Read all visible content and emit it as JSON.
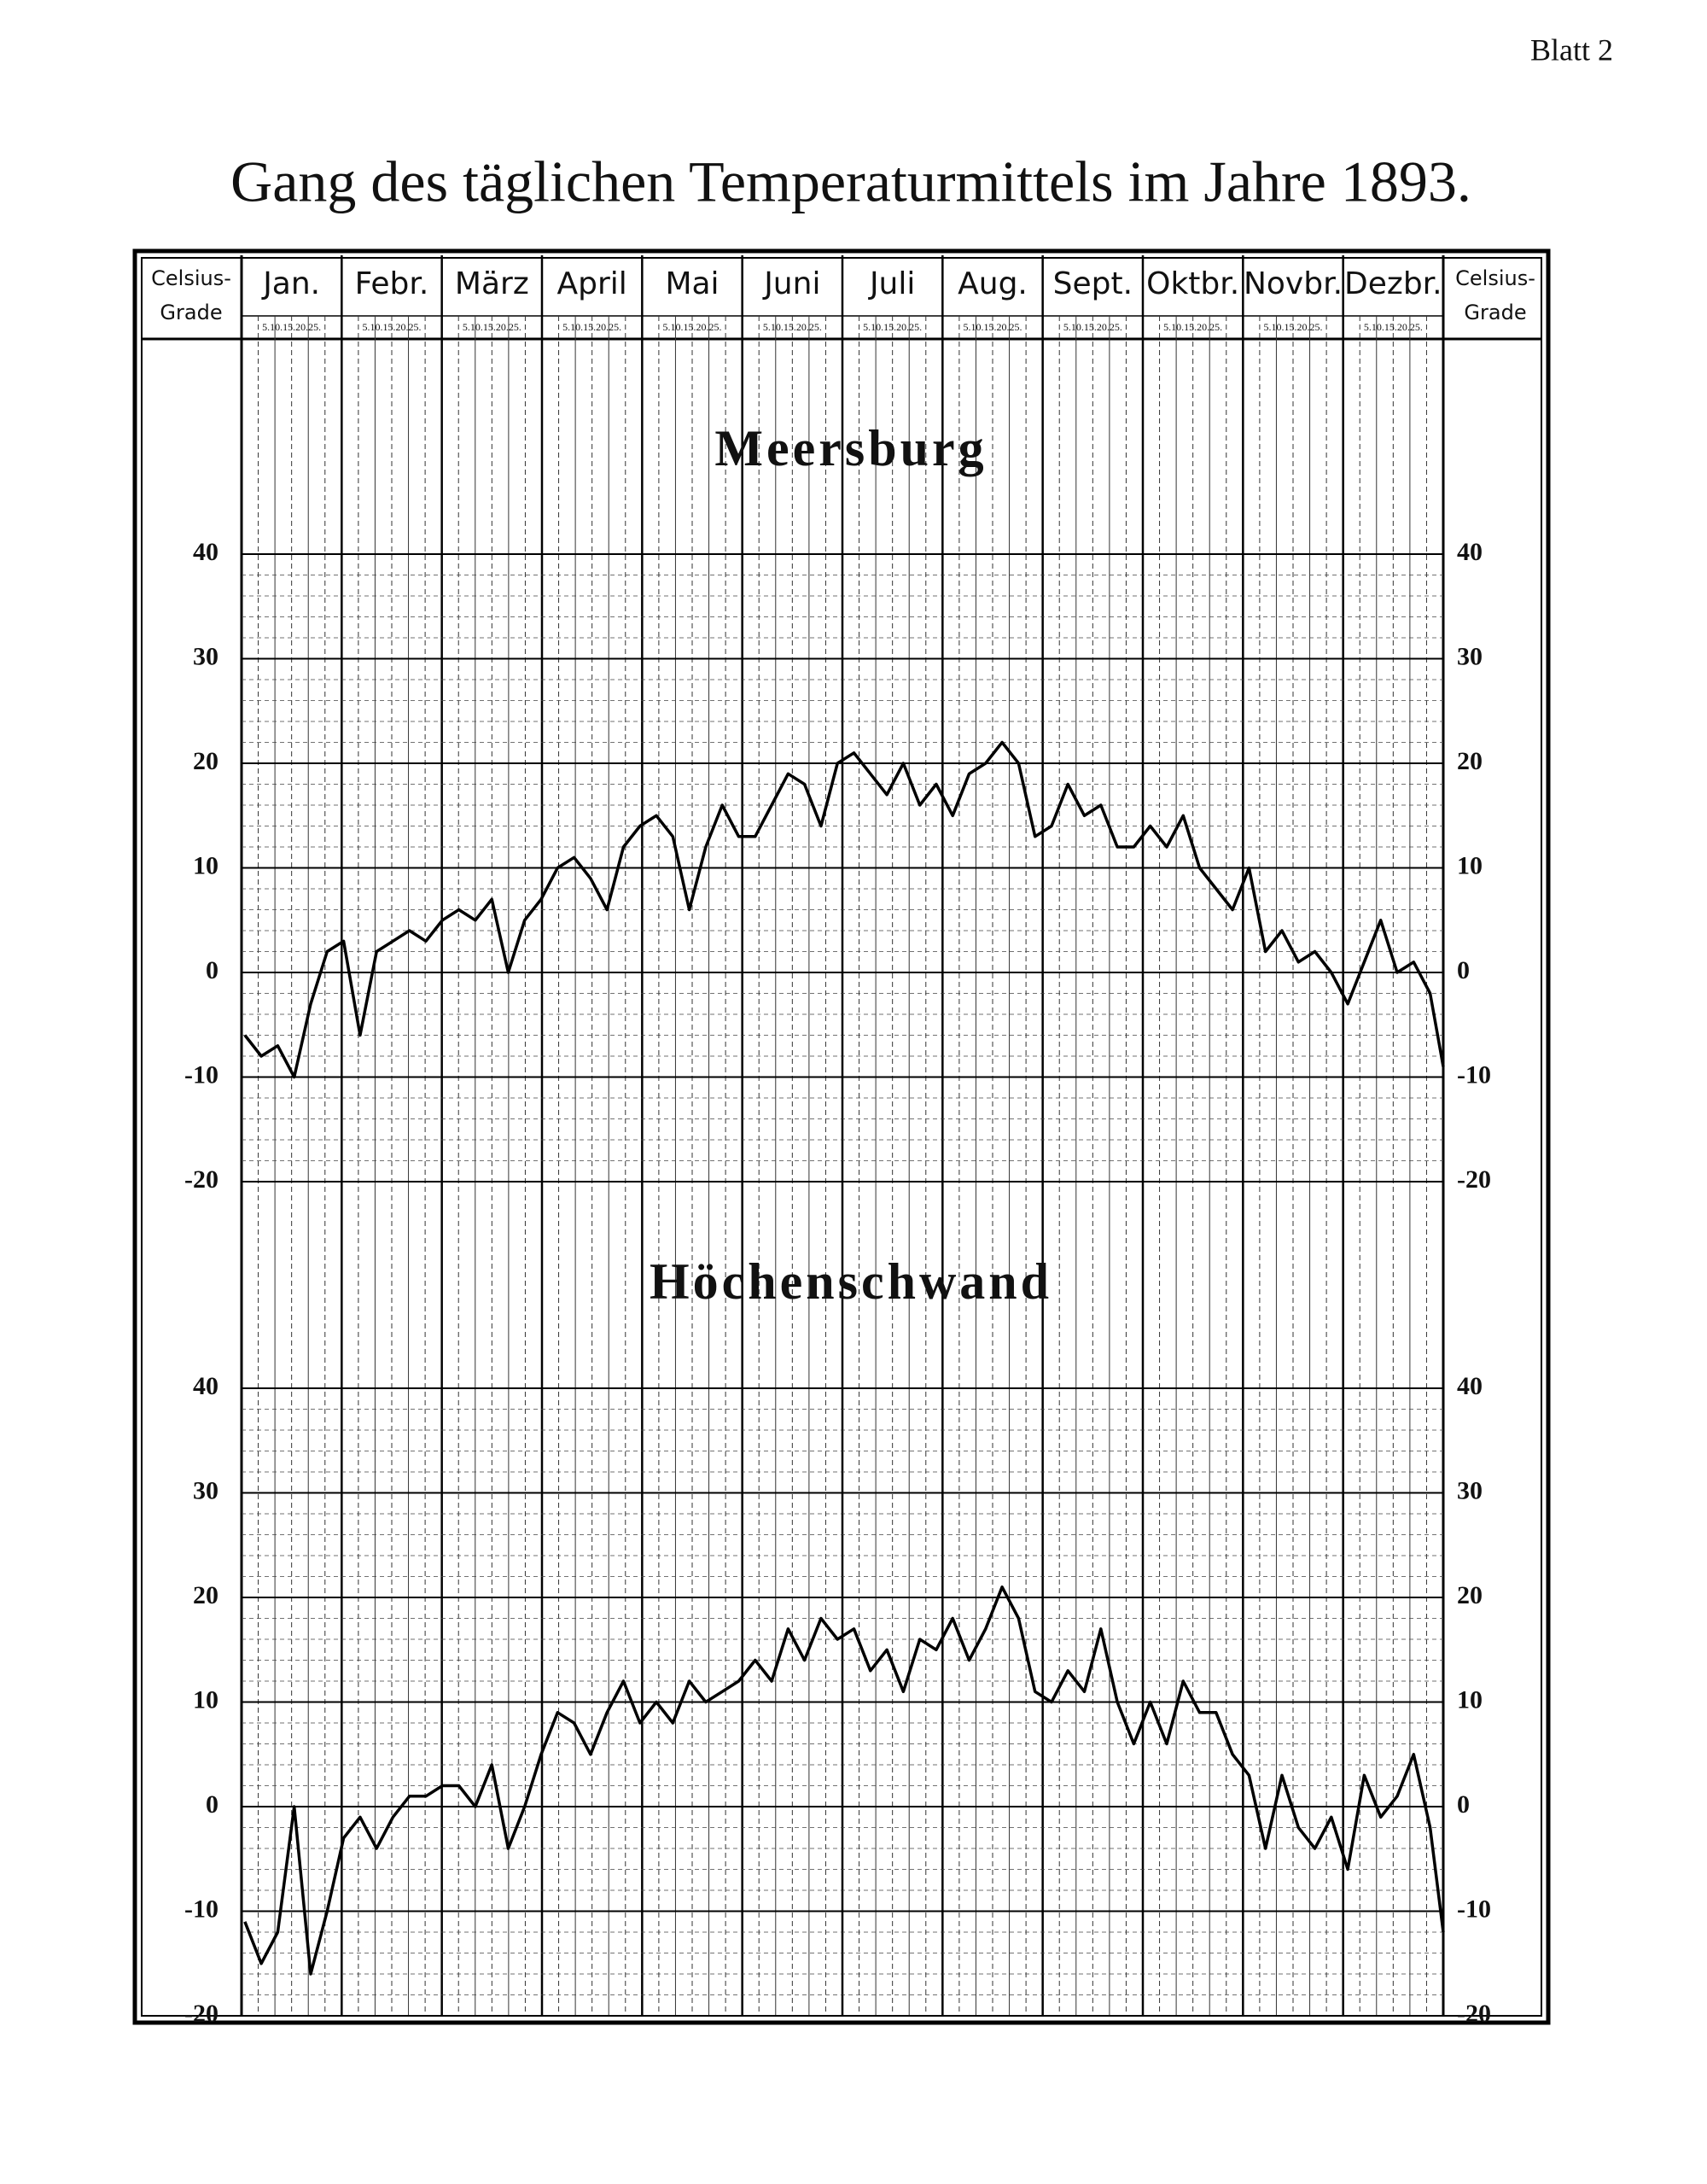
{
  "page_label": "Blatt 2",
  "title": "Gang des täglichen Temperaturmittels im Jahre 1893.",
  "header": {
    "left_label": [
      "Celsius-",
      "Grade"
    ],
    "right_label": [
      "Celsius-",
      "Grade"
    ],
    "months": [
      "Jan.",
      "Febr.",
      "März",
      "April",
      "Mai",
      "Juni",
      "Juli",
      "Aug.",
      "Sept.",
      "Oktbr.",
      "Novbr.",
      "Dezbr."
    ],
    "day_labels": [
      "5.10.15.20.25.",
      "5.10.15.20.25.",
      "5.10.15.20.25.",
      "5.10.15.20.25.",
      "5.10.15.20.25.",
      "5.10.15.20.25.",
      "5.10.15.20.25.",
      "5.10.15.20.25.",
      "5.10.15.20.25.",
      "5.10.15.20.25.",
      "5.10.15.20.25.",
      "5.10.15.20.25."
    ]
  },
  "chart_data": [
    {
      "type": "line",
      "title": "Meersburg",
      "x": [
        1,
        6,
        11,
        16,
        21,
        26,
        31,
        36,
        41,
        46,
        51,
        56,
        61,
        66,
        71,
        76,
        81,
        86,
        91,
        96,
        101,
        106,
        111,
        116,
        121,
        126,
        131,
        136,
        141,
        146,
        151,
        156,
        161,
        166,
        171,
        176,
        181,
        186,
        191,
        196,
        201,
        206,
        211,
        216,
        221,
        226,
        231,
        236,
        241,
        246,
        251,
        256,
        261,
        266,
        271,
        276,
        281,
        286,
        291,
        296,
        301,
        306,
        311,
        316,
        321,
        326,
        331,
        336,
        341,
        346,
        351,
        356,
        361,
        365
      ],
      "values": [
        -6,
        -8,
        -7,
        -10,
        -3,
        2,
        3,
        -6,
        2,
        3,
        4,
        3,
        5,
        6,
        5,
        7,
        0,
        5,
        7,
        10,
        11,
        9,
        6,
        12,
        14,
        15,
        13,
        6,
        12,
        16,
        13,
        13,
        16,
        19,
        18,
        14,
        20,
        21,
        19,
        17,
        20,
        16,
        18,
        15,
        19,
        20,
        22,
        20,
        13,
        14,
        18,
        15,
        16,
        12,
        12,
        14,
        12,
        15,
        10,
        8,
        6,
        10,
        2,
        4,
        1,
        2,
        0,
        -3,
        1,
        5,
        0,
        1,
        -2,
        -9
      ],
      "color": "#000000",
      "xlim": [
        0,
        365
      ],
      "ylim": [
        -20,
        40
      ],
      "yticks": [
        -20,
        -10,
        0,
        10,
        20,
        30,
        40
      ],
      "grid": true
    },
    {
      "type": "line",
      "title": "Höchenschwand",
      "x": [
        1,
        6,
        11,
        16,
        21,
        26,
        31,
        36,
        41,
        46,
        51,
        56,
        61,
        66,
        71,
        76,
        81,
        86,
        91,
        96,
        101,
        106,
        111,
        116,
        121,
        126,
        131,
        136,
        141,
        146,
        151,
        156,
        161,
        166,
        171,
        176,
        181,
        186,
        191,
        196,
        201,
        206,
        211,
        216,
        221,
        226,
        231,
        236,
        241,
        246,
        251,
        256,
        261,
        266,
        271,
        276,
        281,
        286,
        291,
        296,
        301,
        306,
        311,
        316,
        321,
        326,
        331,
        336,
        341,
        346,
        351,
        356,
        361,
        365
      ],
      "values": [
        -11,
        -15,
        -12,
        0,
        -16,
        -10,
        -3,
        -1,
        -4,
        -1,
        1,
        1,
        2,
        2,
        0,
        4,
        -4,
        0,
        5,
        9,
        8,
        5,
        9,
        12,
        8,
        10,
        8,
        12,
        10,
        11,
        12,
        14,
        12,
        17,
        14,
        18,
        16,
        17,
        13,
        15,
        11,
        16,
        15,
        18,
        14,
        17,
        21,
        18,
        11,
        10,
        13,
        11,
        17,
        10,
        6,
        10,
        6,
        12,
        9,
        9,
        5,
        3,
        -4,
        3,
        -2,
        -4,
        -1,
        -6,
        3,
        -1,
        1,
        5,
        -2,
        -12
      ],
      "color": "#000000",
      "xlim": [
        0,
        365
      ],
      "ylim": [
        -20,
        40
      ],
      "yticks": [
        -20,
        -10,
        0,
        10,
        20,
        30,
        40
      ],
      "grid": true
    }
  ]
}
